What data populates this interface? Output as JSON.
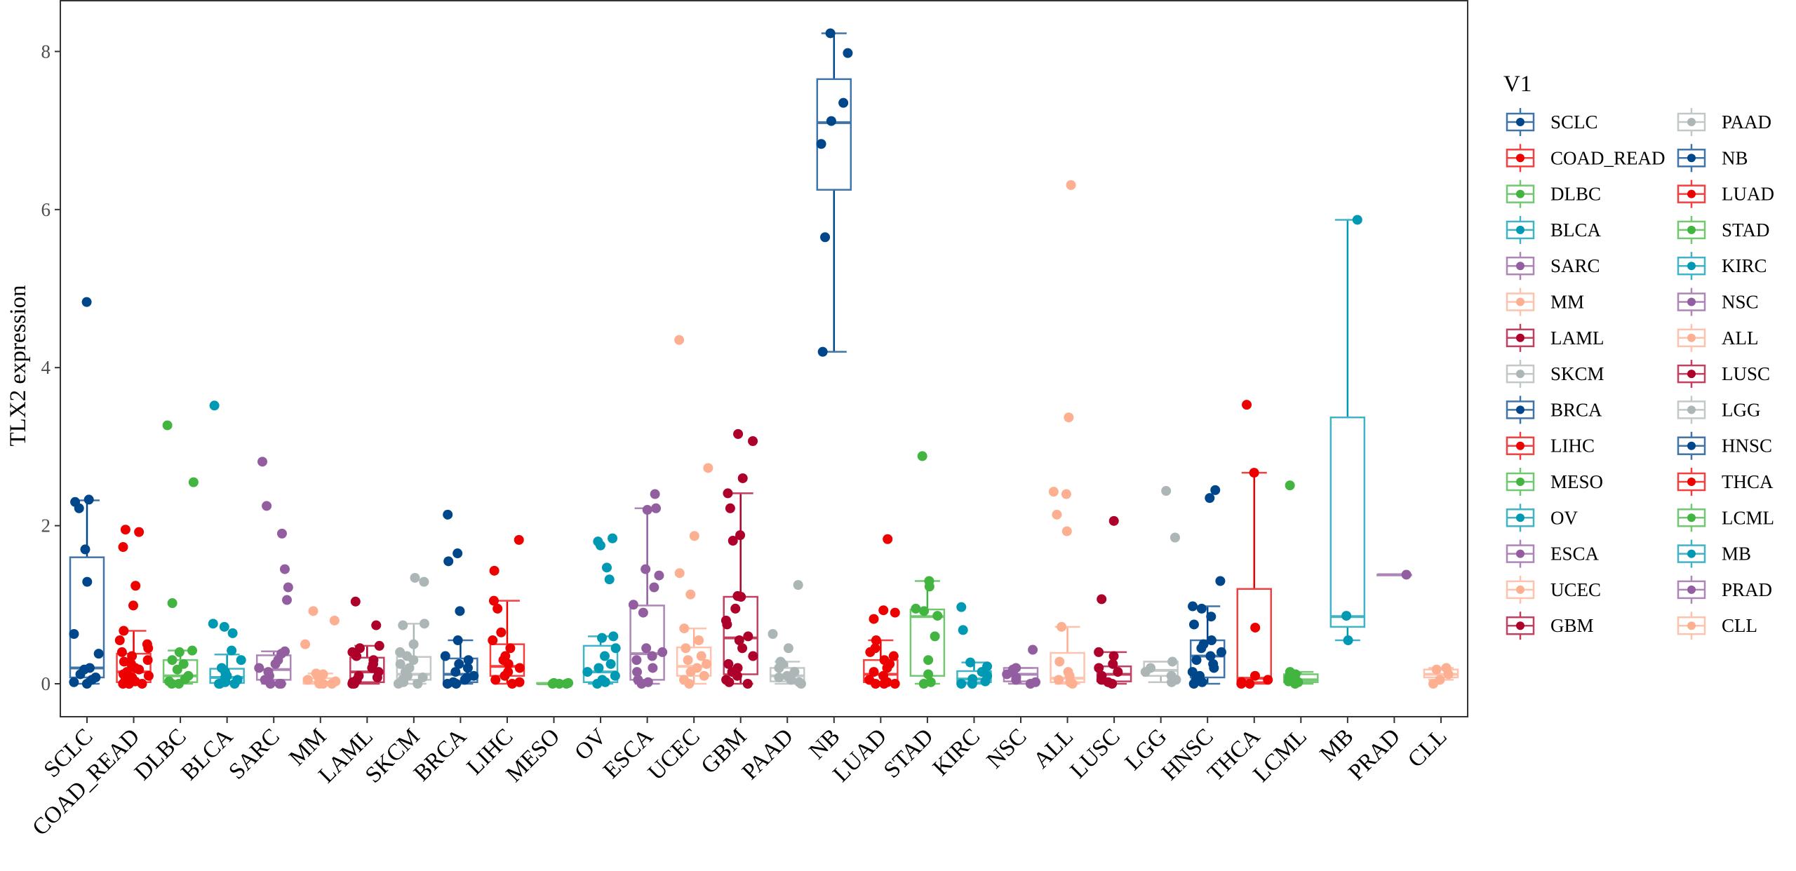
{
  "chart_data": {
    "type": "box",
    "title": "",
    "xlabel": "",
    "ylabel": "TLX2 expression",
    "ylim": [
      -0.4,
      8.6
    ],
    "yticks": [
      0,
      2,
      4,
      6,
      8
    ],
    "grid": false,
    "legend": {
      "title": "V1",
      "position": "right",
      "columns": 2
    },
    "palette": [
      "#00468B",
      "#ED0000",
      "#42B540",
      "#0099B4",
      "#925E9F",
      "#FDAF91",
      "#AD002A",
      "#ADB6B6"
    ],
    "categories": [
      "SCLC",
      "COAD_READ",
      "DLBC",
      "BLCA",
      "SARC",
      "MM",
      "LAML",
      "SKCM",
      "BRCA",
      "LIHC",
      "MESO",
      "OV",
      "ESCA",
      "UCEC",
      "GBM",
      "PAAD",
      "NB",
      "LUAD",
      "STAD",
      "KIRC",
      "NSC",
      "ALL",
      "LUSC",
      "LGG",
      "HNSC",
      "THCA",
      "LCML",
      "MB",
      "PRAD",
      "CLL"
    ],
    "series": [
      {
        "name": "SCLC",
        "box": [
          0,
          0.08,
          0.2,
          1.6,
          2.32
        ],
        "points": [
          4.83,
          2.33,
          2.3,
          2.22,
          1.7,
          1.29,
          0.63,
          0.38,
          0.2,
          0.18,
          0.12,
          0.08,
          0.05,
          0.02,
          0
        ]
      },
      {
        "name": "COAD_READ",
        "box": [
          0,
          0.02,
          0.15,
          0.38,
          0.67
        ],
        "points": [
          1.95,
          1.92,
          1.73,
          1.24,
          0.99,
          0.67,
          0.55,
          0.5,
          0.45,
          0.4,
          0.35,
          0.3,
          0.28,
          0.25,
          0.2,
          0.18,
          0.15,
          0.12,
          0.1,
          0.08,
          0.05,
          0.03,
          0.02,
          0,
          0,
          0,
          0
        ]
      },
      {
        "name": "DLBC",
        "box": [
          0,
          0.02,
          0.1,
          0.3,
          0.42
        ],
        "points": [
          3.27,
          2.55,
          1.02,
          0.42,
          0.4,
          0.3,
          0.25,
          0.18,
          0.1,
          0.06,
          0.03,
          0,
          0
        ]
      },
      {
        "name": "BLCA",
        "box": [
          0,
          0.01,
          0.08,
          0.19,
          0.37
        ],
        "points": [
          3.52,
          0.76,
          0.72,
          0.64,
          0.42,
          0.3,
          0.2,
          0.15,
          0.1,
          0.08,
          0.05,
          0.03,
          0.02,
          0,
          0,
          0
        ]
      },
      {
        "name": "SARC",
        "box": [
          0,
          0.05,
          0.18,
          0.36,
          0.41
        ],
        "points": [
          2.81,
          2.25,
          1.9,
          1.45,
          1.22,
          1.06,
          0.41,
          0.38,
          0.3,
          0.25,
          0.2,
          0.15,
          0.1,
          0.05,
          0,
          0,
          0
        ]
      },
      {
        "name": "MM",
        "box": [
          0,
          0,
          0.02,
          0.07,
          0.13
        ],
        "points": [
          0.92,
          0.8,
          0.5,
          0.13,
          0.12,
          0.08,
          0.05,
          0.03,
          0.01,
          0,
          0,
          0
        ]
      },
      {
        "name": "LAML",
        "box": [
          0,
          0.02,
          0.15,
          0.33,
          0.48
        ],
        "points": [
          1.04,
          0.74,
          0.48,
          0.45,
          0.4,
          0.35,
          0.3,
          0.25,
          0.2,
          0.15,
          0.1,
          0.08,
          0.05,
          0.02,
          0,
          0
        ]
      },
      {
        "name": "SKCM",
        "box": [
          0,
          0.05,
          0.12,
          0.34,
          0.76
        ],
        "points": [
          1.34,
          1.29,
          0.76,
          0.74,
          0.5,
          0.4,
          0.35,
          0.3,
          0.25,
          0.2,
          0.15,
          0.1,
          0.08,
          0.05,
          0.02,
          0,
          0
        ]
      },
      {
        "name": "BRCA",
        "box": [
          0,
          0.02,
          0.12,
          0.32,
          0.55
        ],
        "points": [
          2.14,
          1.65,
          1.55,
          0.92,
          0.55,
          0.35,
          0.3,
          0.25,
          0.2,
          0.15,
          0.1,
          0.08,
          0.05,
          0.02,
          0,
          0
        ]
      },
      {
        "name": "LIHC",
        "box": [
          0,
          0.1,
          0.22,
          0.5,
          1.05
        ],
        "points": [
          1.82,
          1.43,
          1.05,
          0.95,
          0.65,
          0.55,
          0.45,
          0.35,
          0.3,
          0.25,
          0.2,
          0.15,
          0.1,
          0.05,
          0.02,
          0
        ]
      },
      {
        "name": "MESO",
        "box": [
          0,
          0,
          0,
          0.01,
          0.01
        ],
        "points": [
          0.01,
          0,
          0,
          0,
          0.01
        ]
      },
      {
        "name": "OV",
        "box": [
          0,
          0.02,
          0.15,
          0.48,
          0.6
        ],
        "points": [
          1.84,
          1.8,
          1.75,
          1.47,
          1.32,
          0.6,
          0.58,
          0.45,
          0.35,
          0.25,
          0.2,
          0.15,
          0.1,
          0.05,
          0.02,
          0
        ]
      },
      {
        "name": "ESCA",
        "box": [
          0,
          0.05,
          0.38,
          0.99,
          2.22
        ],
        "points": [
          2.4,
          2.22,
          2.2,
          1.45,
          1.37,
          1.22,
          1.0,
          0.9,
          0.45,
          0.4,
          0.35,
          0.3,
          0.2,
          0.15,
          0.05,
          0.02,
          0
        ]
      },
      {
        "name": "UCEC",
        "box": [
          0,
          0.1,
          0.22,
          0.46,
          0.7
        ],
        "points": [
          4.35,
          2.73,
          1.87,
          1.4,
          1.13,
          0.7,
          0.55,
          0.45,
          0.35,
          0.3,
          0.25,
          0.2,
          0.15,
          0.1,
          0.05,
          0
        ]
      },
      {
        "name": "GBM",
        "box": [
          0,
          0.12,
          0.58,
          1.1,
          2.41
        ],
        "points": [
          3.16,
          3.07,
          2.6,
          2.41,
          2.22,
          1.88,
          1.81,
          1.11,
          1.1,
          0.95,
          0.8,
          0.75,
          0.6,
          0.55,
          0.45,
          0.35,
          0.25,
          0.2,
          0.15,
          0.1,
          0.05,
          0.02,
          0
        ]
      },
      {
        "name": "PAAD",
        "box": [
          0,
          0.03,
          0.1,
          0.2,
          0.28
        ],
        "points": [
          1.25,
          0.63,
          0.45,
          0.28,
          0.25,
          0.2,
          0.15,
          0.1,
          0.08,
          0.05,
          0.02,
          0
        ]
      },
      {
        "name": "NB",
        "box": [
          4.2,
          6.25,
          7.1,
          7.65,
          8.23
        ],
        "points": [
          8.23,
          7.98,
          7.35,
          7.12,
          6.83,
          5.65,
          4.2
        ]
      },
      {
        "name": "LUAD",
        "box": [
          0,
          0.02,
          0.12,
          0.3,
          0.55
        ],
        "points": [
          1.83,
          0.93,
          0.9,
          0.82,
          0.55,
          0.45,
          0.4,
          0.35,
          0.3,
          0.25,
          0.2,
          0.15,
          0.1,
          0.05,
          0.02,
          0,
          0,
          0
        ]
      },
      {
        "name": "STAD",
        "box": [
          0,
          0.1,
          0.85,
          0.94,
          1.3
        ],
        "points": [
          2.88,
          1.3,
          1.23,
          0.95,
          0.92,
          0.86,
          0.6,
          0.3,
          0.12,
          0.02,
          0
        ]
      },
      {
        "name": "KIRC",
        "box": [
          0,
          0.02,
          0.06,
          0.16,
          0.27
        ],
        "points": [
          0.97,
          0.68,
          0.27,
          0.22,
          0.15,
          0.1,
          0.06,
          0.03,
          0,
          0
        ]
      },
      {
        "name": "NSC",
        "box": [
          0,
          0.03,
          0.12,
          0.2,
          0.2
        ],
        "points": [
          0.43,
          0.2,
          0.18,
          0.15,
          0.12,
          0.08,
          0.05,
          0.02,
          0
        ]
      },
      {
        "name": "ALL",
        "box": [
          0,
          0.02,
          0.07,
          0.39,
          0.72
        ],
        "points": [
          6.31,
          3.37,
          2.43,
          2.4,
          2.14,
          1.93,
          0.72,
          0.28,
          0.15,
          0.1,
          0.05,
          0.02,
          0
        ]
      },
      {
        "name": "LUSC",
        "box": [
          0,
          0.03,
          0.12,
          0.22,
          0.4
        ],
        "points": [
          2.06,
          1.07,
          0.4,
          0.35,
          0.25,
          0.2,
          0.15,
          0.1,
          0.05,
          0.02,
          0
        ]
      },
      {
        "name": "LGG",
        "box": [
          0.02,
          0.1,
          0.17,
          0.28,
          0.28
        ],
        "points": [
          2.44,
          1.85,
          0.28,
          0.2,
          0.15,
          0.1,
          0.05,
          0.02
        ]
      },
      {
        "name": "HNSC",
        "box": [
          0,
          0.08,
          0.35,
          0.55,
          0.98
        ],
        "points": [
          2.45,
          2.35,
          1.3,
          0.98,
          0.95,
          0.85,
          0.75,
          0.55,
          0.5,
          0.45,
          0.4,
          0.35,
          0.3,
          0.25,
          0.2,
          0.15,
          0.1,
          0.05,
          0.02,
          0
        ]
      },
      {
        "name": "THCA",
        "box": [
          0,
          0.02,
          0.07,
          1.2,
          2.67
        ],
        "points": [
          3.53,
          2.67,
          0.71,
          0.1,
          0.05,
          0.02,
          0,
          0
        ]
      },
      {
        "name": "LCML",
        "box": [
          0,
          0.02,
          0.05,
          0.12,
          0.15
        ],
        "points": [
          2.51,
          0.15,
          0.12,
          0.08,
          0.05,
          0.03,
          0.02,
          0
        ]
      },
      {
        "name": "MB",
        "box": [
          0.55,
          0.72,
          0.85,
          3.37,
          5.87
        ],
        "points": [
          5.87,
          0.86,
          0.55
        ]
      },
      {
        "name": "PRAD",
        "box": [
          1.38,
          1.38,
          1.38,
          1.38,
          1.38
        ],
        "points": [
          1.38
        ]
      },
      {
        "name": "CLL",
        "box": [
          0.05,
          0.08,
          0.12,
          0.18,
          0.2
        ],
        "points": [
          0.2,
          0.18,
          0.12,
          0.05,
          0
        ]
      }
    ]
  }
}
